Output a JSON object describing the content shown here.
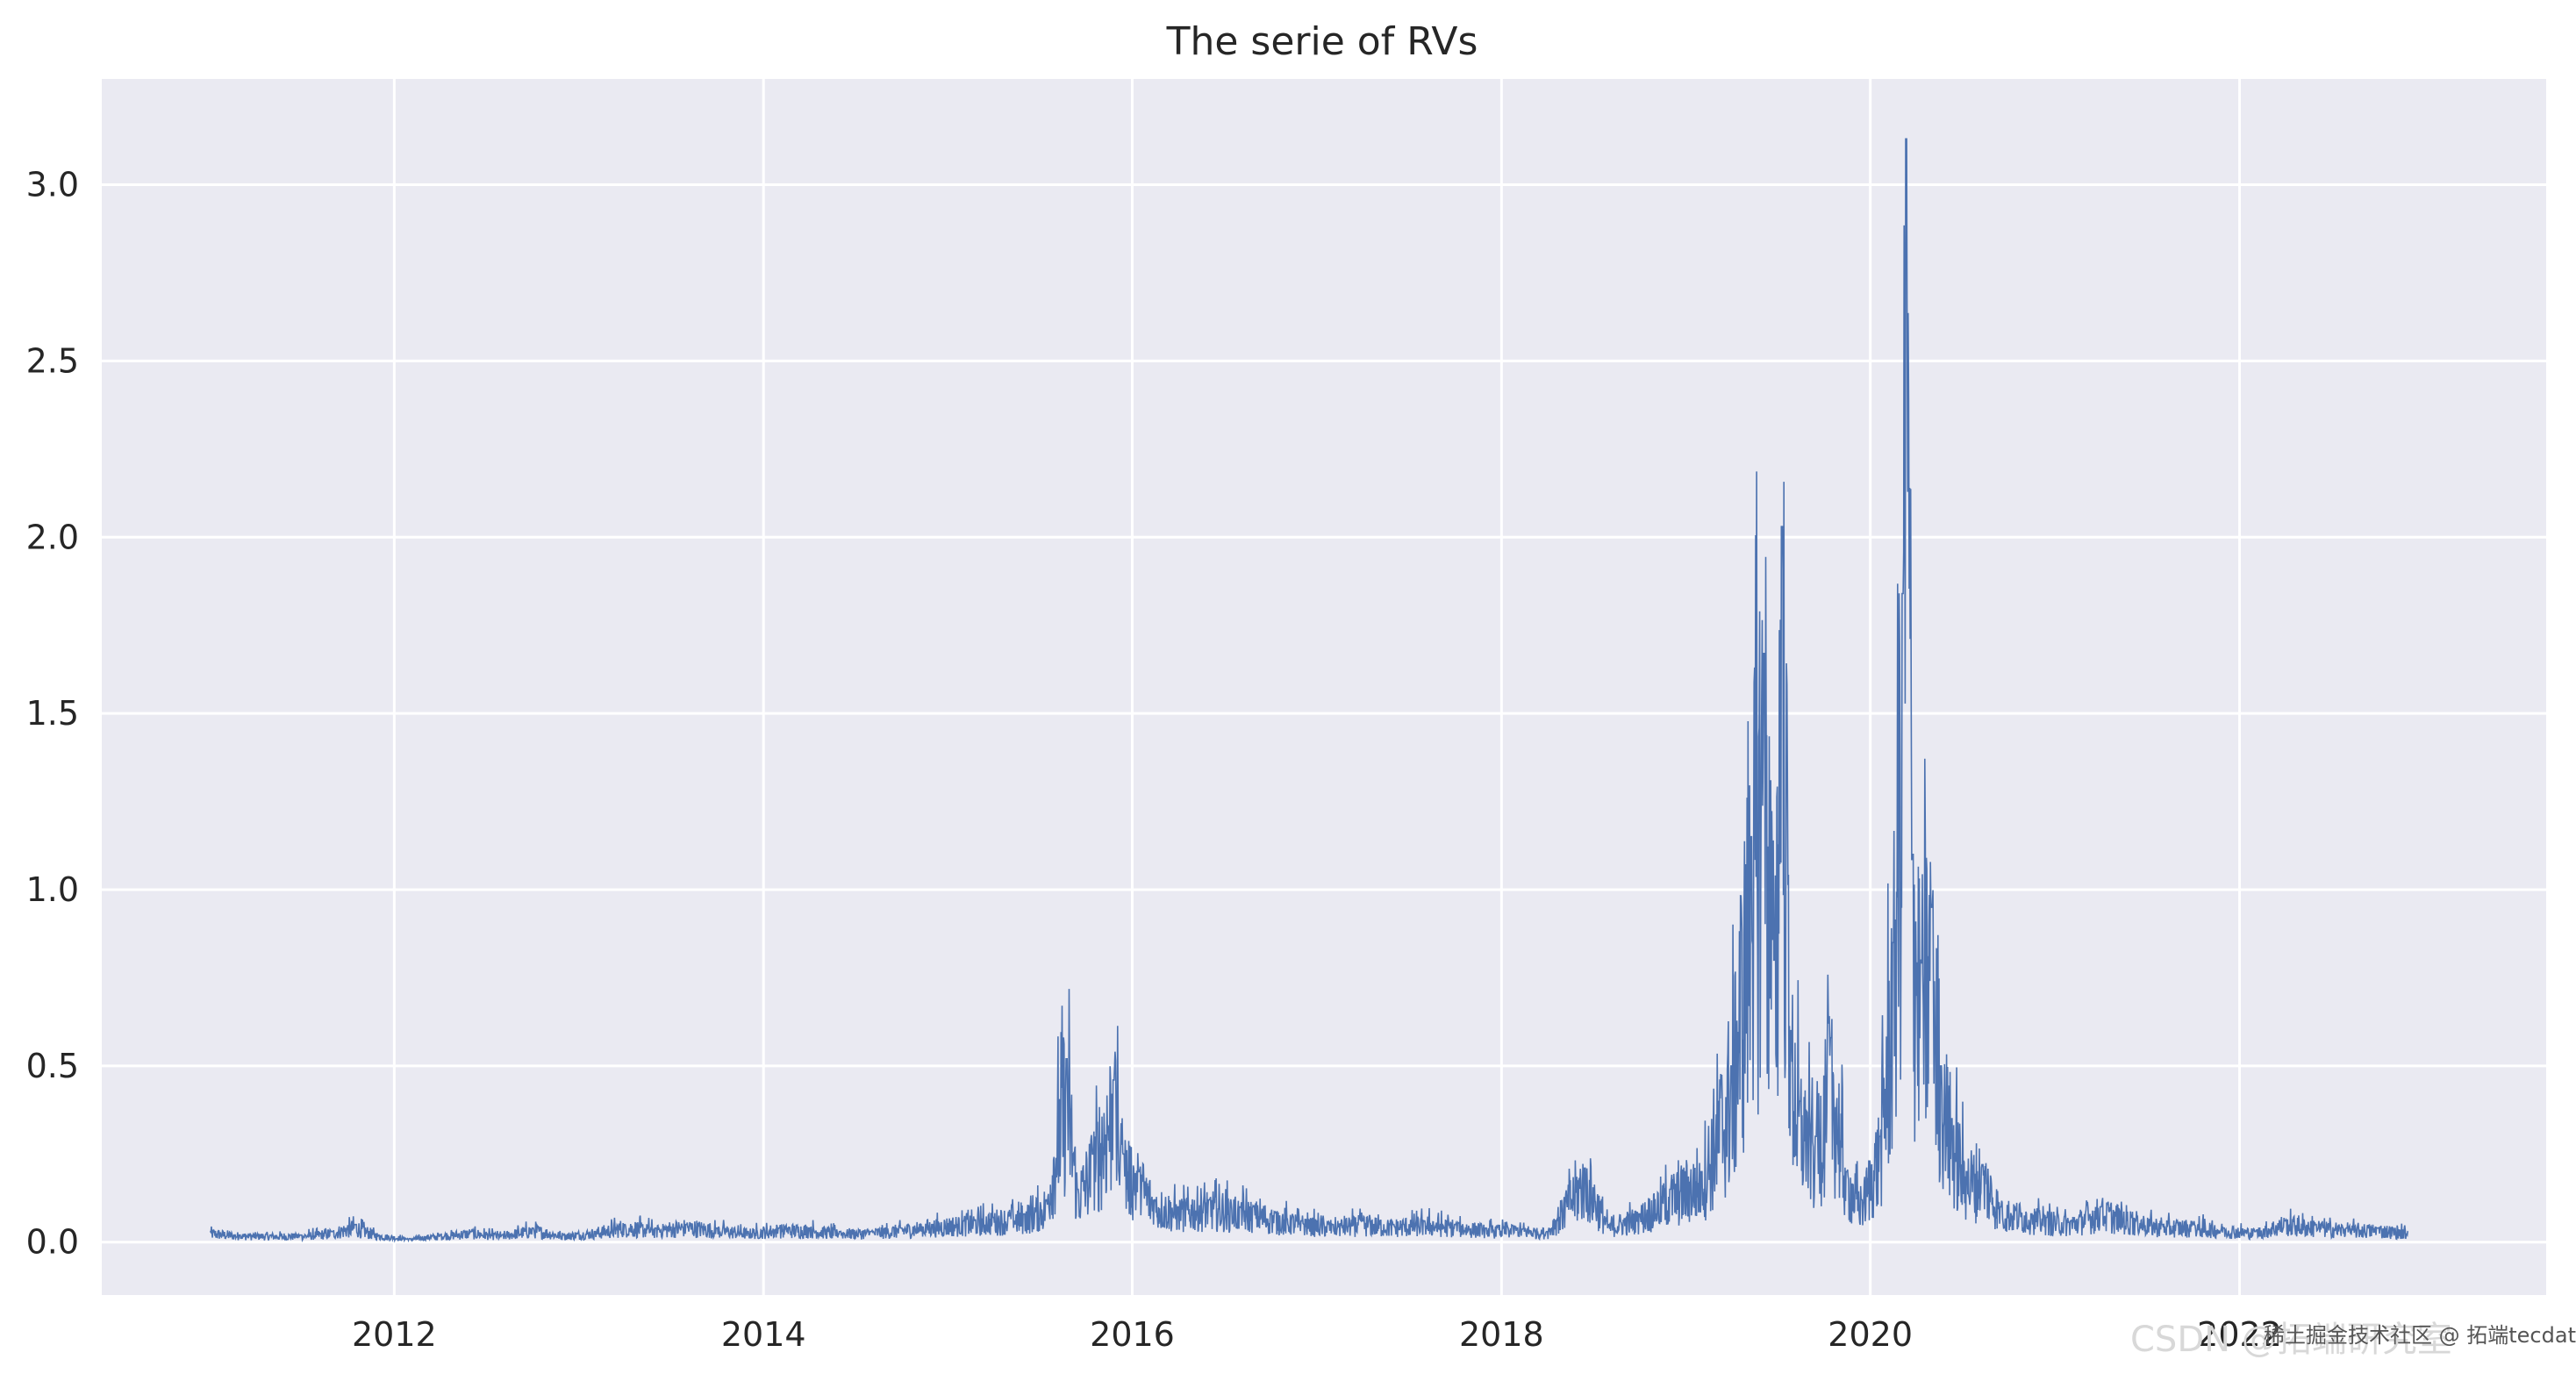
{
  "chart_data": {
    "type": "line",
    "title": "The serie of RVs",
    "xlabel": "",
    "ylabel": "",
    "xlim": [
      "2010-06-01",
      "2023-08-31"
    ],
    "ylim": [
      -0.15,
      3.3
    ],
    "grid": true,
    "legend": "none",
    "x_ticks": [
      "2012",
      "2014",
      "2016",
      "2018",
      "2020",
      "2022"
    ],
    "y_ticks": [
      "0.0",
      "0.5",
      "1.0",
      "1.5",
      "2.0",
      "2.5",
      "3.0"
    ],
    "series": [
      {
        "color": "#4c72b0",
        "x": [
          "2011-01-01",
          "2011-03-01",
          "2011-05-01",
          "2011-07-01",
          "2011-09-01",
          "2011-10-15",
          "2011-12-01",
          "2012-02-01",
          "2012-04-01",
          "2012-06-01",
          "2012-08-01",
          "2012-10-01",
          "2012-12-01",
          "2013-02-01",
          "2013-04-01",
          "2013-06-01",
          "2013-08-01",
          "2013-10-01",
          "2013-12-01",
          "2014-02-01",
          "2014-04-01",
          "2014-06-01",
          "2014-08-01",
          "2014-10-01",
          "2014-12-01",
          "2015-02-01",
          "2015-04-01",
          "2015-06-01",
          "2015-07-15",
          "2015-08-24",
          "2015-09-15",
          "2015-10-15",
          "2015-11-25",
          "2015-12-15",
          "2016-01-15",
          "2016-02-15",
          "2016-04-01",
          "2016-06-01",
          "2016-08-01",
          "2016-10-01",
          "2016-12-01",
          "2017-02-01",
          "2017-04-01",
          "2017-06-01",
          "2017-08-01",
          "2017-10-01",
          "2017-12-01",
          "2018-02-01",
          "2018-04-01",
          "2018-06-15",
          "2018-08-01",
          "2018-10-01",
          "2018-12-01",
          "2019-02-01",
          "2019-04-01",
          "2019-05-10",
          "2019-06-05",
          "2019-06-25",
          "2019-07-10",
          "2019-07-28",
          "2019-08-15",
          "2019-09-15",
          "2019-10-15",
          "2019-11-15",
          "2019-12-15",
          "2020-01-20",
          "2020-02-15",
          "2020-03-05",
          "2020-03-12",
          "2020-03-25",
          "2020-04-10",
          "2020-05-01",
          "2020-05-20",
          "2020-06-10",
          "2020-07-10",
          "2020-08-10",
          "2020-09-15",
          "2020-10-15",
          "2020-11-15",
          "2020-12-15",
          "2021-02-01",
          "2021-04-01",
          "2021-06-01",
          "2021-08-01",
          "2021-10-01",
          "2021-12-01",
          "2022-02-01",
          "2022-04-01",
          "2022-06-01",
          "2022-08-01",
          "2022-10-01",
          "2022-12-01"
        ],
        "y": [
          0.03,
          0.02,
          0.02,
          0.02,
          0.03,
          0.05,
          0.02,
          0.01,
          0.02,
          0.03,
          0.02,
          0.04,
          0.02,
          0.03,
          0.05,
          0.04,
          0.05,
          0.04,
          0.03,
          0.04,
          0.04,
          0.03,
          0.03,
          0.04,
          0.05,
          0.06,
          0.07,
          0.08,
          0.12,
          0.52,
          0.15,
          0.25,
          0.46,
          0.25,
          0.2,
          0.12,
          0.1,
          0.12,
          0.1,
          0.08,
          0.06,
          0.05,
          0.06,
          0.05,
          0.06,
          0.05,
          0.04,
          0.04,
          0.03,
          0.21,
          0.05,
          0.08,
          0.15,
          0.2,
          0.5,
          1.15,
          1.67,
          0.8,
          2.03,
          0.6,
          0.4,
          0.3,
          0.58,
          0.2,
          0.12,
          0.3,
          0.85,
          1.84,
          3.13,
          1.1,
          0.8,
          0.95,
          0.5,
          0.35,
          0.2,
          0.22,
          0.1,
          0.09,
          0.08,
          0.07,
          0.06,
          0.1,
          0.07,
          0.05,
          0.05,
          0.04,
          0.03,
          0.06,
          0.05,
          0.04,
          0.04,
          0.03
        ]
      }
    ]
  },
  "watermark": {
    "text": "CSDN @拓端研究室",
    "overlay": "稀土掘金技术社区 @ 拓端tecdat"
  }
}
